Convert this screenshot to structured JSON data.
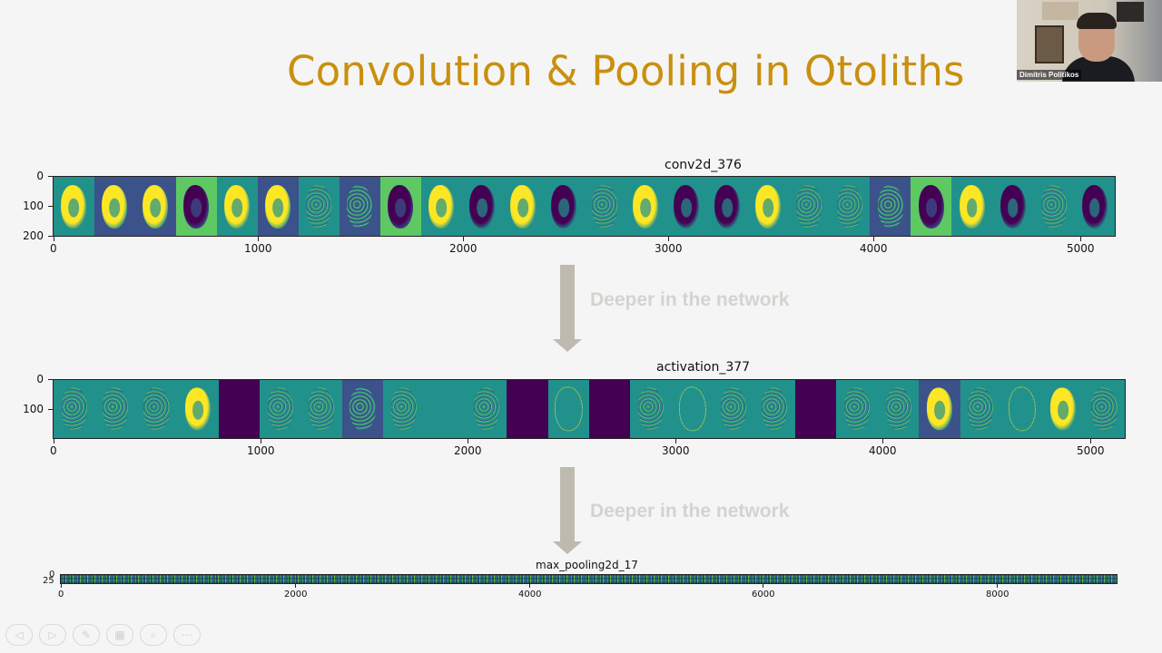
{
  "slide": {
    "title": "Convolution & Pooling in Otoliths"
  },
  "webcam": {
    "name": "Dimitris Politikos"
  },
  "annotations": {
    "arrow1_text": "Deeper in the network",
    "arrow2_text": "Deeper in the network"
  },
  "chart_data": [
    {
      "type": "heatmap",
      "title": "conv2d_376",
      "xticks": [
        "0",
        "1000",
        "2000",
        "3000",
        "4000",
        "5000"
      ],
      "yticks": [
        "0",
        "100",
        "200"
      ],
      "panel_count": 26
    },
    {
      "type": "heatmap",
      "title": "activation_377",
      "xticks": [
        "0",
        "1000",
        "2000",
        "3000",
        "4000",
        "5000"
      ],
      "yticks": [
        "0",
        "100"
      ],
      "panel_count": 26
    },
    {
      "type": "heatmap",
      "title": "max_pooling2d_17",
      "xticks": [
        "0",
        "2000",
        "4000",
        "6000",
        "8000"
      ],
      "yticks": [
        "0",
        "25"
      ]
    }
  ],
  "colors": {
    "title": "#c9900f",
    "viridis_dark": "#440154",
    "viridis_blue": "#3b528b",
    "viridis_teal": "#21918c",
    "viridis_green": "#5ec962",
    "viridis_yellow": "#fde725",
    "arrow": "#bfbab0"
  },
  "toolbar": {
    "buttons": [
      {
        "icon": "prev-icon",
        "glyph": "◁"
      },
      {
        "icon": "next-icon",
        "glyph": "▷"
      },
      {
        "icon": "pen-icon",
        "glyph": "✎"
      },
      {
        "icon": "slides-icon",
        "glyph": "▦"
      },
      {
        "icon": "zoom-icon",
        "glyph": "⌕"
      },
      {
        "icon": "more-icon",
        "glyph": "⋯"
      }
    ]
  }
}
